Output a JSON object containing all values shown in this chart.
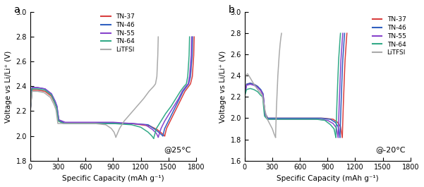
{
  "title_a": "a",
  "title_b": "b",
  "annotation_a": "@25°C",
  "annotation_b": "@-20°C",
  "xlabel": "Specific Capacity (mAh g⁻¹)",
  "ylabel": "Voltage vs Li/Li⁺ (V)",
  "legend_labels": [
    "TN-37",
    "TN-46",
    "TN-55",
    "TN-64",
    "LiTFSI"
  ],
  "colors": {
    "TN-37": "#d94040",
    "TN-46": "#3060c0",
    "TN-55": "#8844cc",
    "TN-64": "#33aa88",
    "LiTFSI": "#aaaaaa"
  },
  "ylim_a": [
    1.8,
    3.0
  ],
  "ylim_b": [
    1.6,
    3.0
  ],
  "xlim": [
    0,
    1800
  ],
  "xticks": [
    0,
    300,
    600,
    900,
    1200,
    1500,
    1800
  ],
  "yticks_a": [
    1.8,
    2.0,
    2.2,
    2.4,
    2.6,
    2.8,
    3.0
  ],
  "yticks_b": [
    1.6,
    1.8,
    2.0,
    2.2,
    2.4,
    2.6,
    2.8,
    3.0
  ],
  "linewidth": 1.1,
  "curves_a": {
    "TN-37": {
      "xd": [
        0,
        20,
        80,
        160,
        230,
        270,
        290,
        310,
        380,
        600,
        900,
        1100,
        1300,
        1380,
        1430,
        1460
      ],
      "yd": [
        2.2,
        2.37,
        2.37,
        2.36,
        2.32,
        2.26,
        2.22,
        2.12,
        2.1,
        2.1,
        2.1,
        2.1,
        2.08,
        2.05,
        2.02,
        2.0
      ],
      "xc": [
        1460,
        1480,
        1520,
        1560,
        1600,
        1640,
        1680,
        1720,
        1740,
        1760,
        1775,
        1780
      ],
      "yc": [
        2.0,
        2.06,
        2.12,
        2.18,
        2.24,
        2.3,
        2.36,
        2.4,
        2.42,
        2.48,
        2.65,
        2.8
      ]
    },
    "TN-46": {
      "xd": [
        0,
        20,
        80,
        160,
        230,
        270,
        290,
        310,
        380,
        600,
        900,
        1100,
        1280,
        1360,
        1410,
        1440
      ],
      "yd": [
        2.2,
        2.39,
        2.39,
        2.38,
        2.34,
        2.28,
        2.24,
        2.13,
        2.1,
        2.1,
        2.1,
        2.1,
        2.09,
        2.05,
        2.02,
        2.0
      ],
      "xc": [
        1440,
        1460,
        1500,
        1540,
        1580,
        1620,
        1660,
        1700,
        1720,
        1740,
        1758,
        1762
      ],
      "yc": [
        2.0,
        2.06,
        2.12,
        2.18,
        2.24,
        2.3,
        2.36,
        2.4,
        2.42,
        2.48,
        2.65,
        2.8
      ]
    },
    "TN-55": {
      "xd": [
        0,
        20,
        80,
        160,
        230,
        270,
        290,
        310,
        380,
        600,
        900,
        1100,
        1250,
        1330,
        1370,
        1390
      ],
      "yd": [
        2.2,
        2.39,
        2.39,
        2.38,
        2.34,
        2.28,
        2.24,
        2.13,
        2.11,
        2.11,
        2.11,
        2.1,
        2.09,
        2.05,
        2.02,
        1.99
      ],
      "xc": [
        1390,
        1420,
        1460,
        1510,
        1560,
        1610,
        1650,
        1690,
        1715,
        1730,
        1748,
        1753
      ],
      "yc": [
        1.99,
        2.06,
        2.12,
        2.18,
        2.24,
        2.3,
        2.36,
        2.4,
        2.42,
        2.48,
        2.65,
        2.8
      ]
    },
    "TN-64": {
      "xd": [
        0,
        20,
        80,
        160,
        230,
        265,
        285,
        305,
        360,
        600,
        900,
        1100,
        1200,
        1280,
        1320,
        1340
      ],
      "yd": [
        2.2,
        2.38,
        2.38,
        2.37,
        2.33,
        2.27,
        2.23,
        2.12,
        2.1,
        2.1,
        2.1,
        2.09,
        2.07,
        2.03,
        2.0,
        1.98
      ],
      "xc": [
        1340,
        1370,
        1420,
        1470,
        1530,
        1580,
        1630,
        1670,
        1695,
        1710,
        1725,
        1730
      ],
      "yc": [
        1.98,
        2.06,
        2.12,
        2.18,
        2.24,
        2.3,
        2.36,
        2.4,
        2.42,
        2.48,
        2.65,
        2.8
      ]
    },
    "LiTFSI": {
      "xd": [
        0,
        20,
        80,
        150,
        220,
        260,
        280,
        300,
        360,
        550,
        700,
        820,
        880,
        910,
        930
      ],
      "yd": [
        2.19,
        2.36,
        2.36,
        2.35,
        2.31,
        2.25,
        2.21,
        2.1,
        2.1,
        2.1,
        2.1,
        2.09,
        2.06,
        2.03,
        1.99
      ],
      "xc": [
        930,
        970,
        1020,
        1090,
        1160,
        1230,
        1290,
        1340,
        1360,
        1375,
        1385,
        1390
      ],
      "yc": [
        1.99,
        2.06,
        2.12,
        2.18,
        2.24,
        2.3,
        2.36,
        2.4,
        2.42,
        2.48,
        2.65,
        2.8
      ]
    }
  },
  "curves_b": {
    "TN-37": {
      "xd": [
        0,
        20,
        60,
        100,
        140,
        175,
        200,
        220,
        250,
        400,
        650,
        850,
        960,
        1010,
        1040,
        1060
      ],
      "yd": [
        2.21,
        2.32,
        2.33,
        2.32,
        2.3,
        2.26,
        2.22,
        2.05,
        2.0,
        2.0,
        2.0,
        2.0,
        1.99,
        1.96,
        1.92,
        1.82
      ],
      "xc": [
        1060,
        1070,
        1082,
        1090,
        1098,
        1104,
        1110
      ],
      "yc": [
        1.82,
        2.1,
        2.38,
        2.55,
        2.65,
        2.73,
        2.8
      ]
    },
    "TN-46": {
      "xd": [
        0,
        20,
        60,
        100,
        140,
        175,
        200,
        220,
        250,
        400,
        650,
        830,
        930,
        985,
        1015,
        1035
      ],
      "yd": [
        2.21,
        2.32,
        2.33,
        2.32,
        2.3,
        2.27,
        2.23,
        2.05,
        2.0,
        2.0,
        2.0,
        2.0,
        1.99,
        1.96,
        1.92,
        1.82
      ],
      "xc": [
        1035,
        1045,
        1057,
        1065,
        1073,
        1079,
        1085
      ],
      "yc": [
        1.82,
        2.1,
        2.38,
        2.55,
        2.65,
        2.73,
        2.8
      ]
    },
    "TN-55": {
      "xd": [
        0,
        20,
        60,
        100,
        140,
        175,
        200,
        220,
        250,
        400,
        600,
        800,
        900,
        960,
        995,
        1015
      ],
      "yd": [
        2.22,
        2.31,
        2.32,
        2.31,
        2.29,
        2.26,
        2.22,
        2.03,
        1.99,
        1.99,
        1.99,
        1.99,
        1.98,
        1.95,
        1.91,
        1.82
      ],
      "xc": [
        1015,
        1025,
        1037,
        1045,
        1053,
        1059,
        1065
      ],
      "yc": [
        1.82,
        2.1,
        2.38,
        2.55,
        2.65,
        2.73,
        2.8
      ]
    },
    "TN-64": {
      "xd": [
        0,
        20,
        60,
        100,
        140,
        170,
        195,
        215,
        245,
        400,
        600,
        780,
        870,
        930,
        970,
        990
      ],
      "yd": [
        2.21,
        2.27,
        2.28,
        2.27,
        2.25,
        2.22,
        2.2,
        2.02,
        1.99,
        1.99,
        1.99,
        1.99,
        1.98,
        1.94,
        1.9,
        1.82
      ],
      "xc": [
        990,
        1000,
        1012,
        1020,
        1028,
        1034,
        1040
      ],
      "yc": [
        1.82,
        2.1,
        2.38,
        2.55,
        2.65,
        2.73,
        2.8
      ]
    },
    "LiTFSI": {
      "xd": [
        0,
        10,
        30,
        60,
        100,
        150,
        190,
        215,
        240,
        270,
        300,
        320,
        335
      ],
      "yd": [
        2.22,
        2.4,
        2.42,
        2.38,
        2.32,
        2.26,
        2.22,
        2.1,
        2.0,
        1.95,
        1.9,
        1.85,
        1.82
      ],
      "xc": [
        335,
        345,
        360,
        375,
        385,
        393,
        400
      ],
      "yc": [
        1.82,
        2.1,
        2.4,
        2.6,
        2.7,
        2.76,
        2.8
      ]
    }
  }
}
